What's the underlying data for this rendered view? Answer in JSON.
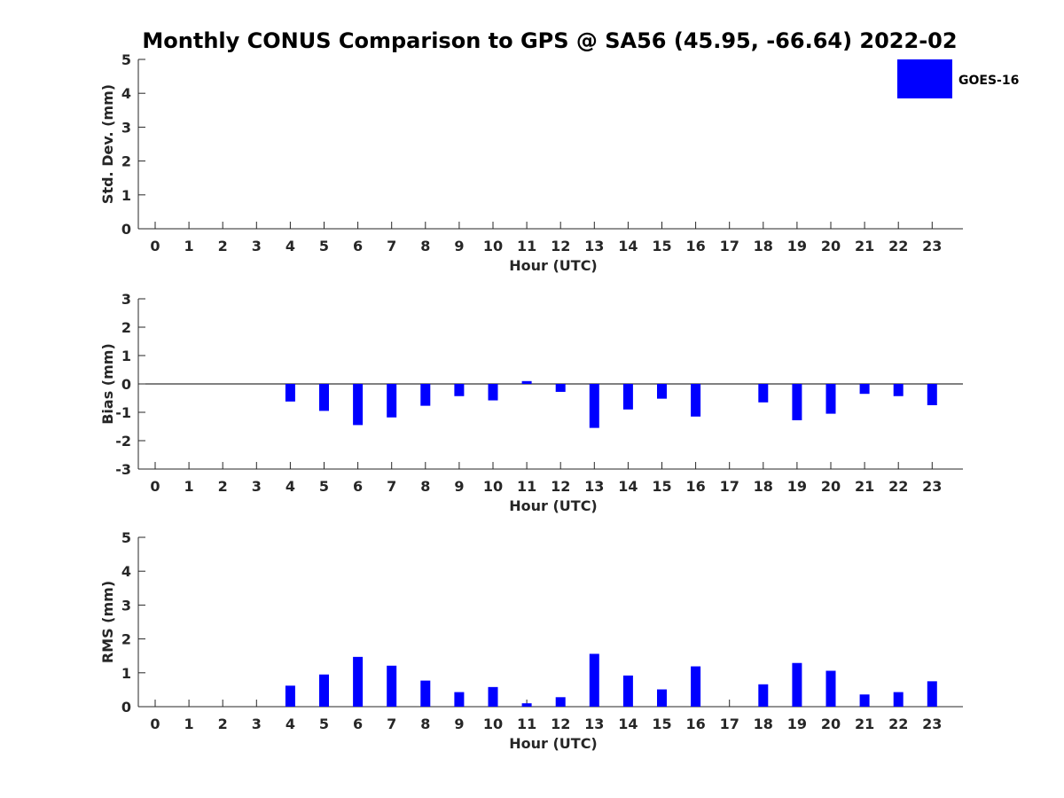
{
  "title": "Monthly CONUS Comparison to GPS @ SA56 (45.95, -66.64) 2022-02",
  "legend": {
    "label": "GOES-16",
    "color": "#0000ff",
    "placement": "top-right outside"
  },
  "chart_data": [
    {
      "type": "bar",
      "name": "std-dev",
      "xlabel": "Hour (UTC)",
      "ylabel": "Std. Dev. (mm)",
      "ylim": [
        0,
        5
      ],
      "yticks": [
        0,
        1,
        2,
        3,
        4,
        5
      ],
      "categories": [
        "0",
        "1",
        "2",
        "3",
        "4",
        "5",
        "6",
        "7",
        "8",
        "9",
        "10",
        "11",
        "12",
        "13",
        "14",
        "15",
        "16",
        "17",
        "18",
        "19",
        "20",
        "21",
        "22",
        "23"
      ],
      "series": [
        {
          "name": "GOES-16",
          "values": [
            null,
            null,
            null,
            null,
            null,
            null,
            null,
            null,
            null,
            null,
            null,
            null,
            null,
            null,
            null,
            null,
            null,
            null,
            null,
            null,
            null,
            null,
            null,
            null
          ]
        }
      ],
      "zero_line": false
    },
    {
      "type": "bar",
      "name": "bias",
      "xlabel": "Hour (UTC)",
      "ylabel": "Bias (mm)",
      "ylim": [
        -3,
        3
      ],
      "yticks": [
        -3,
        -2,
        -1,
        0,
        1,
        2,
        3
      ],
      "categories": [
        "0",
        "1",
        "2",
        "3",
        "4",
        "5",
        "6",
        "7",
        "8",
        "9",
        "10",
        "11",
        "12",
        "13",
        "14",
        "15",
        "16",
        "17",
        "18",
        "19",
        "20",
        "21",
        "22",
        "23"
      ],
      "series": [
        {
          "name": "GOES-16",
          "values": [
            null,
            null,
            null,
            null,
            -0.62,
            -0.95,
            -1.45,
            -1.18,
            -0.77,
            -0.43,
            -0.58,
            0.1,
            -0.28,
            -1.55,
            -0.9,
            -0.52,
            -1.15,
            null,
            -0.65,
            -1.28,
            -1.05,
            -0.35,
            -0.43,
            -0.75
          ]
        }
      ],
      "zero_line": true
    },
    {
      "type": "bar",
      "name": "rms",
      "xlabel": "Hour (UTC)",
      "ylabel": "RMS (mm)",
      "ylim": [
        0,
        5
      ],
      "yticks": [
        0,
        1,
        2,
        3,
        4,
        5
      ],
      "categories": [
        "0",
        "1",
        "2",
        "3",
        "4",
        "5",
        "6",
        "7",
        "8",
        "9",
        "10",
        "11",
        "12",
        "13",
        "14",
        "15",
        "16",
        "17",
        "18",
        "19",
        "20",
        "21",
        "22",
        "23"
      ],
      "series": [
        {
          "name": "GOES-16",
          "values": [
            null,
            null,
            null,
            null,
            0.62,
            0.95,
            1.47,
            1.21,
            0.77,
            0.43,
            0.58,
            0.1,
            0.28,
            1.56,
            0.92,
            0.51,
            1.19,
            null,
            0.66,
            1.29,
            1.06,
            0.36,
            0.43,
            0.75
          ]
        }
      ],
      "zero_line": false
    }
  ]
}
